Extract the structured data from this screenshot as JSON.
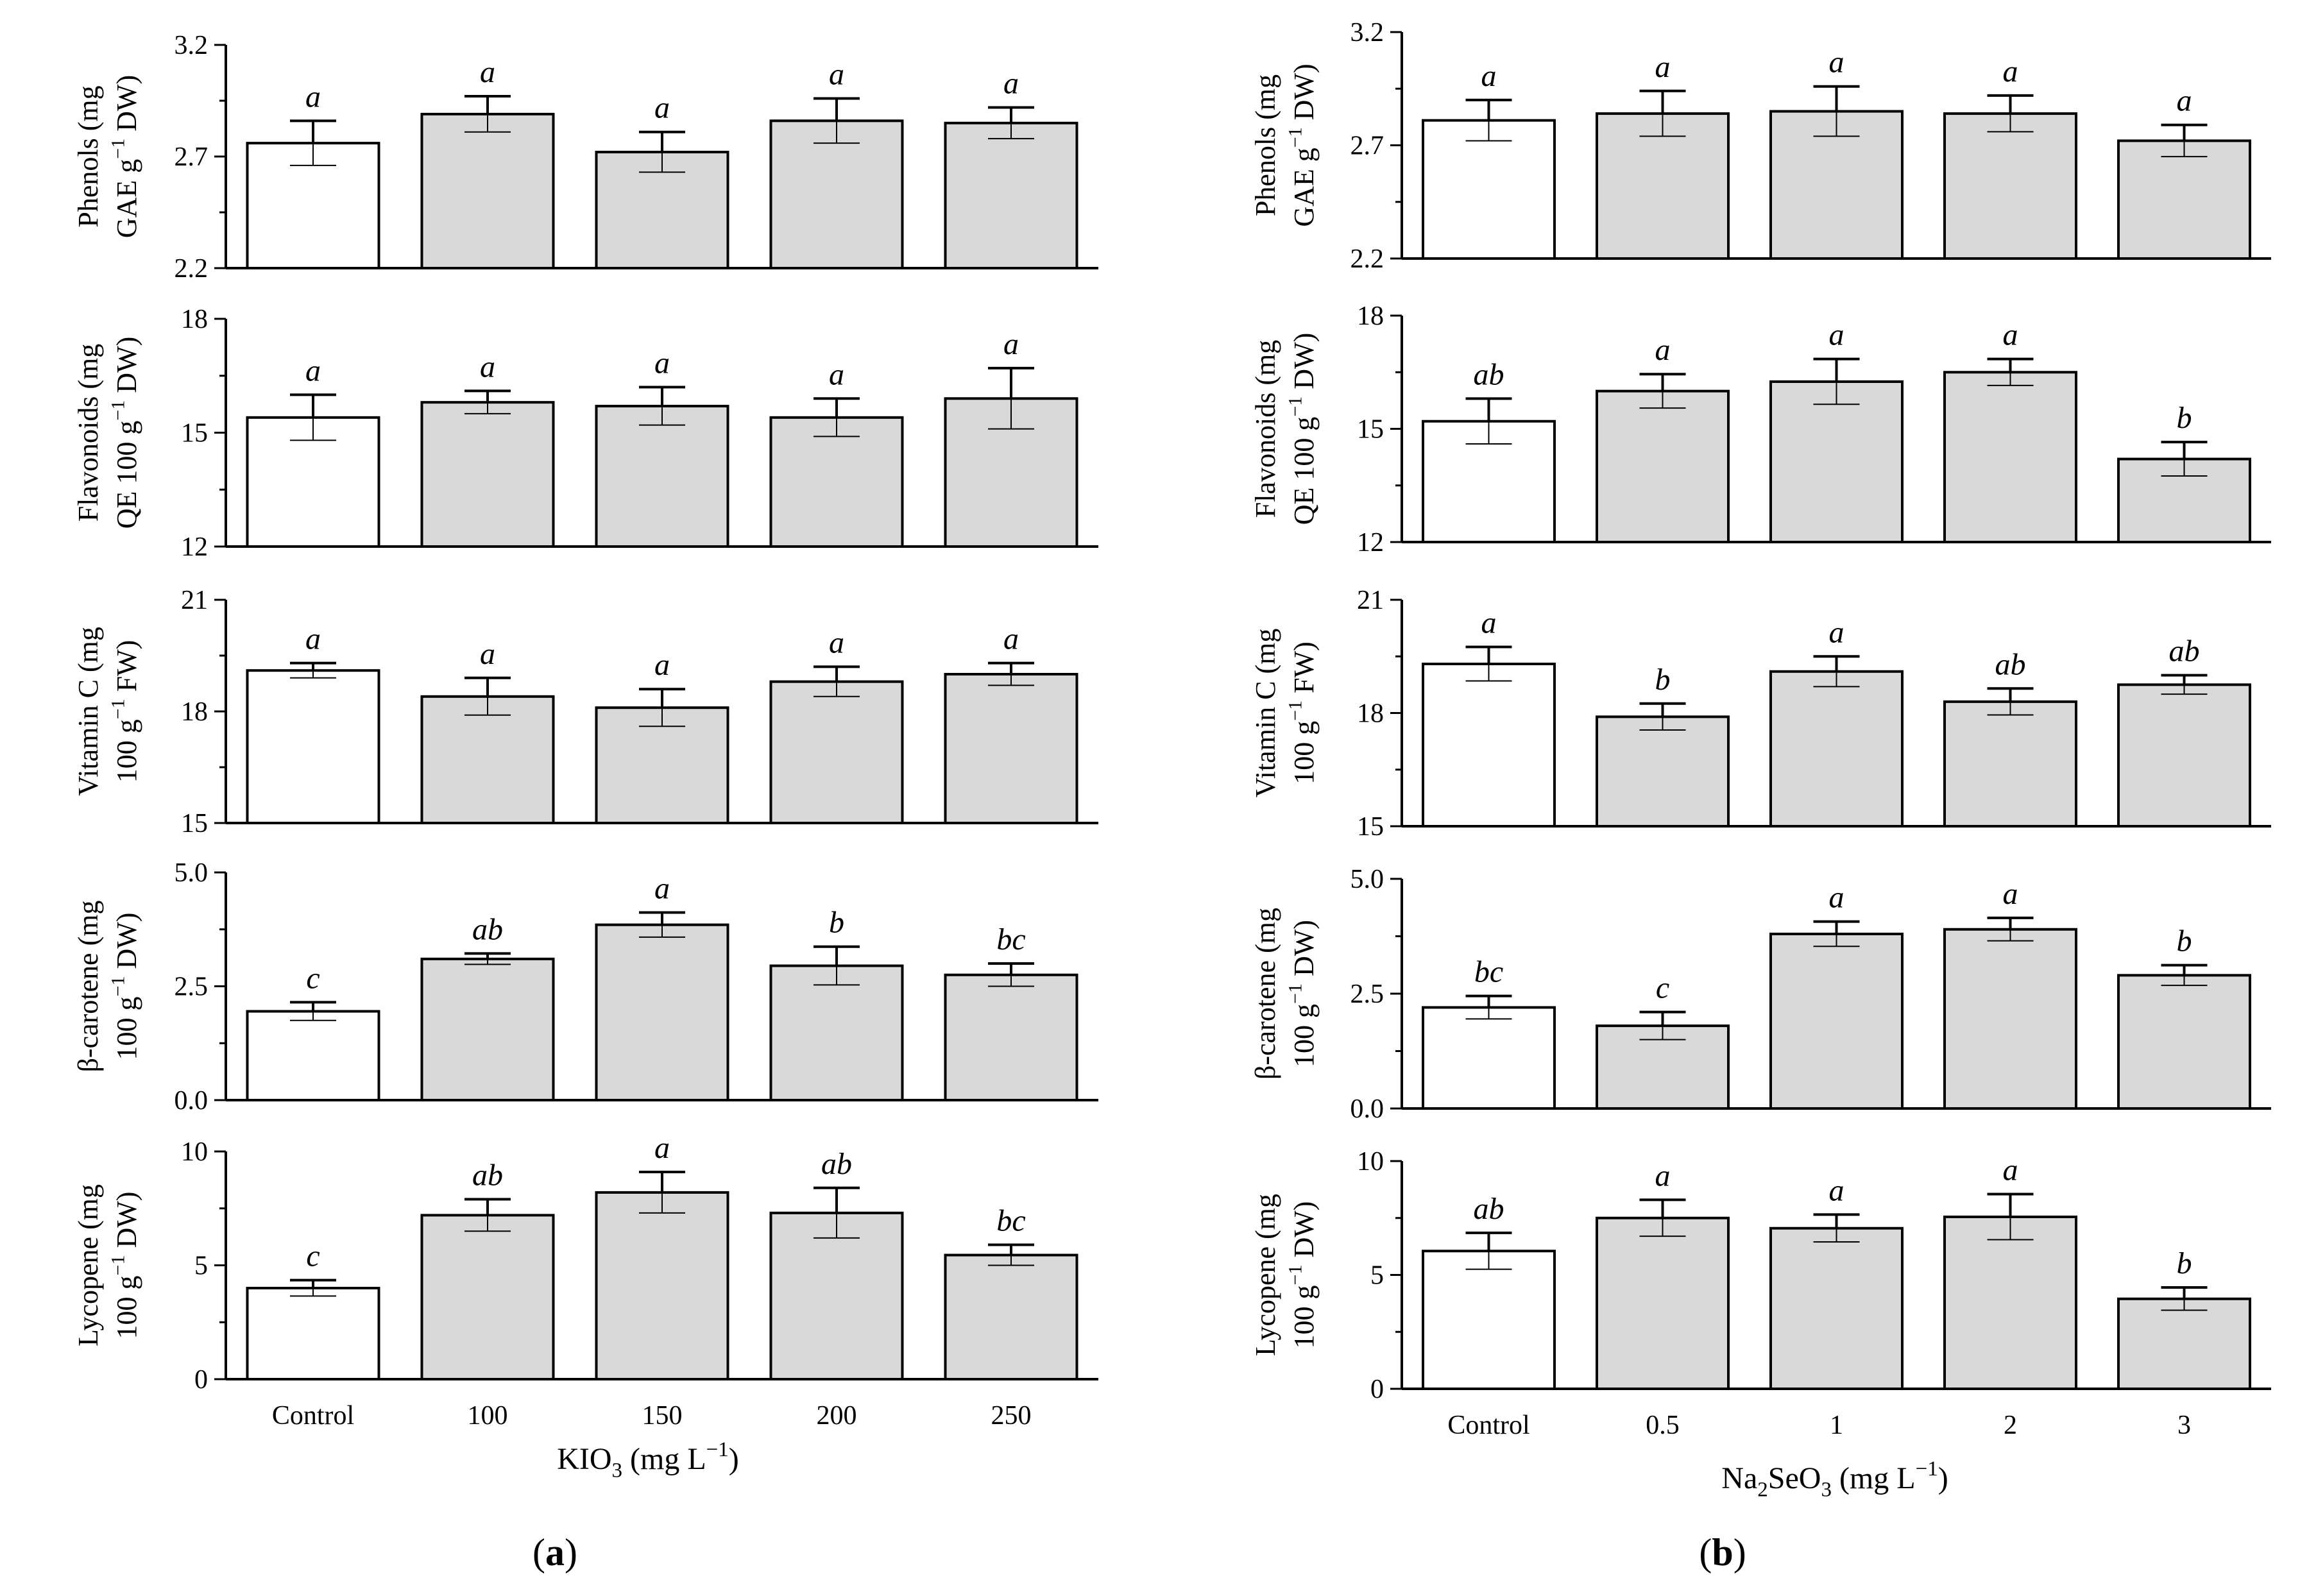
{
  "figure": {
    "panels": [
      {
        "label": "a",
        "xaxis_parts": [
          [
            "KIO",
            null
          ],
          [
            "3",
            "sub"
          ],
          [
            " (mg L",
            null
          ],
          [
            "−1",
            "sup"
          ],
          [
            ")",
            null
          ]
        ]
      },
      {
        "label": "b",
        "xaxis_parts": [
          [
            "Na",
            null
          ],
          [
            "2",
            "sub"
          ],
          [
            "SeO",
            null
          ],
          [
            "3",
            "sub"
          ],
          [
            " (mg L",
            null
          ],
          [
            "−1",
            "sup"
          ],
          [
            ")",
            null
          ]
        ]
      }
    ]
  },
  "chart_data": [
    {
      "type": "bar",
      "panel": "a",
      "row": 0,
      "categories": [
        "Control",
        "100",
        "150",
        "200",
        "250"
      ],
      "values": [
        2.76,
        2.89,
        2.72,
        2.86,
        2.85
      ],
      "errors": [
        0.1,
        0.08,
        0.09,
        0.1,
        0.07
      ],
      "letters": [
        "a",
        "a",
        "a",
        "a",
        "a"
      ],
      "ylim": [
        2.2,
        3.2
      ],
      "yticks": [
        "2.2",
        "2.7",
        "3.2"
      ],
      "ylabel_lines": [
        [
          [
            "Phenols (mg",
            null
          ]
        ],
        [
          [
            "GAE g",
            null
          ],
          [
            "−1",
            "sup"
          ],
          [
            " DW)",
            null
          ]
        ]
      ]
    },
    {
      "type": "bar",
      "panel": "a",
      "row": 1,
      "categories": [
        "Control",
        "100",
        "150",
        "200",
        "250"
      ],
      "values": [
        15.4,
        15.8,
        15.7,
        15.4,
        15.9
      ],
      "errors": [
        0.6,
        0.3,
        0.5,
        0.5,
        0.8
      ],
      "letters": [
        "a",
        "a",
        "a",
        "a",
        "a"
      ],
      "ylim": [
        12,
        18
      ],
      "yticks": [
        "12",
        "15",
        "18"
      ],
      "ylabel_lines": [
        [
          [
            "Flavonoids (mg",
            null
          ]
        ],
        [
          [
            "QE 100 g",
            null
          ],
          [
            "−1",
            "sup"
          ],
          [
            " DW)",
            null
          ]
        ]
      ]
    },
    {
      "type": "bar",
      "panel": "a",
      "row": 2,
      "categories": [
        "Control",
        "100",
        "150",
        "200",
        "250"
      ],
      "values": [
        19.1,
        18.4,
        18.1,
        18.8,
        19.0
      ],
      "errors": [
        0.2,
        0.5,
        0.5,
        0.4,
        0.3
      ],
      "letters": [
        "a",
        "a",
        "a",
        "a",
        "a"
      ],
      "ylim": [
        15,
        21
      ],
      "yticks": [
        "15",
        "18",
        "21"
      ],
      "ylabel_lines": [
        [
          [
            "Vitamin C (mg",
            null
          ]
        ],
        [
          [
            "100 g",
            null
          ],
          [
            "−1",
            "sup"
          ],
          [
            " FW)",
            null
          ]
        ]
      ]
    },
    {
      "type": "bar",
      "panel": "a",
      "row": 3,
      "categories": [
        "Control",
        "100",
        "150",
        "200",
        "250"
      ],
      "values": [
        1.95,
        3.1,
        3.85,
        2.95,
        2.75
      ],
      "errors": [
        0.2,
        0.12,
        0.27,
        0.42,
        0.25
      ],
      "letters": [
        "c",
        "ab",
        "a",
        "b",
        "bc"
      ],
      "ylim": [
        0,
        5
      ],
      "yticks": [
        "0.0",
        "2.5",
        "5.0"
      ],
      "ylabel_lines": [
        [
          [
            "β-carotene (mg",
            null
          ]
        ],
        [
          [
            "100 g",
            null
          ],
          [
            "−1",
            "sup"
          ],
          [
            " DW)",
            null
          ]
        ]
      ]
    },
    {
      "type": "bar",
      "panel": "a",
      "row": 4,
      "categories": [
        "Control",
        "100",
        "150",
        "200",
        "250"
      ],
      "values": [
        4.0,
        7.2,
        8.2,
        7.3,
        5.45
      ],
      "errors": [
        0.35,
        0.7,
        0.9,
        1.1,
        0.45
      ],
      "letters": [
        "c",
        "ab",
        "a",
        "ab",
        "bc"
      ],
      "ylim": [
        0,
        10
      ],
      "yticks": [
        "0",
        "5",
        "10"
      ],
      "ylabel_lines": [
        [
          [
            "Lycopene (mg",
            null
          ]
        ],
        [
          [
            "100 g",
            null
          ],
          [
            "−1",
            "sup"
          ],
          [
            " DW)",
            null
          ]
        ]
      ]
    },
    {
      "type": "bar",
      "panel": "b",
      "row": 0,
      "categories": [
        "Control",
        "0.5",
        "1",
        "2",
        "3"
      ],
      "values": [
        2.81,
        2.84,
        2.85,
        2.84,
        2.72
      ],
      "errors": [
        0.09,
        0.1,
        0.11,
        0.08,
        0.07
      ],
      "letters": [
        "a",
        "a",
        "a",
        "a",
        "a"
      ],
      "ylim": [
        2.2,
        3.2
      ],
      "yticks": [
        "2.2",
        "2.7",
        "3.2"
      ],
      "ylabel_lines": [
        [
          [
            "Phenols (mg",
            null
          ]
        ],
        [
          [
            "GAE g",
            null
          ],
          [
            "−1",
            "sup"
          ],
          [
            " DW)",
            null
          ]
        ]
      ]
    },
    {
      "type": "bar",
      "panel": "b",
      "row": 1,
      "categories": [
        "Control",
        "0.5",
        "1",
        "2",
        "3"
      ],
      "values": [
        15.2,
        16.0,
        16.25,
        16.5,
        14.2
      ],
      "errors": [
        0.6,
        0.45,
        0.6,
        0.35,
        0.45
      ],
      "letters": [
        "ab",
        "a",
        "a",
        "a",
        "b"
      ],
      "ylim": [
        12,
        18
      ],
      "yticks": [
        "12",
        "15",
        "18"
      ],
      "ylabel_lines": [
        [
          [
            "Flavonoids (mg",
            null
          ]
        ],
        [
          [
            "QE 100 g",
            null
          ],
          [
            "−1",
            "sup"
          ],
          [
            " DW)",
            null
          ]
        ]
      ]
    },
    {
      "type": "bar",
      "panel": "b",
      "row": 2,
      "categories": [
        "Control",
        "0.5",
        "1",
        "2",
        "3"
      ],
      "values": [
        19.3,
        17.9,
        19.1,
        18.3,
        18.75
      ],
      "errors": [
        0.45,
        0.35,
        0.4,
        0.35,
        0.25
      ],
      "letters": [
        "a",
        "b",
        "a",
        "ab",
        "ab"
      ],
      "ylim": [
        15,
        21
      ],
      "yticks": [
        "15",
        "18",
        "21"
      ],
      "ylabel_lines": [
        [
          [
            "Vitamin C (mg",
            null
          ]
        ],
        [
          [
            "100 g",
            null
          ],
          [
            "−1",
            "sup"
          ],
          [
            " FW)",
            null
          ]
        ]
      ]
    },
    {
      "type": "bar",
      "panel": "b",
      "row": 3,
      "categories": [
        "Control",
        "0.5",
        "1",
        "2",
        "3"
      ],
      "values": [
        2.2,
        1.8,
        3.8,
        3.9,
        2.9
      ],
      "errors": [
        0.25,
        0.3,
        0.27,
        0.25,
        0.22
      ],
      "letters": [
        "bc",
        "c",
        "a",
        "a",
        "b"
      ],
      "ylim": [
        0,
        5
      ],
      "yticks": [
        "0.0",
        "2.5",
        "5.0"
      ],
      "ylabel_lines": [
        [
          [
            "β-carotene (mg",
            null
          ]
        ],
        [
          [
            "100 g",
            null
          ],
          [
            "−1",
            "sup"
          ],
          [
            " DW)",
            null
          ]
        ]
      ]
    },
    {
      "type": "bar",
      "panel": "b",
      "row": 4,
      "categories": [
        "Control",
        "0.5",
        "1",
        "2",
        "3"
      ],
      "values": [
        6.05,
        7.5,
        7.05,
        7.55,
        3.95
      ],
      "errors": [
        0.8,
        0.8,
        0.6,
        1.0,
        0.5
      ],
      "letters": [
        "ab",
        "a",
        "a",
        "a",
        "b"
      ],
      "ylim": [
        0,
        10
      ],
      "yticks": [
        "0",
        "5",
        "10"
      ],
      "ylabel_lines": [
        [
          [
            "Lycopene (mg",
            null
          ]
        ],
        [
          [
            "100 g",
            null
          ],
          [
            "−1",
            "sup"
          ],
          [
            " DW)",
            null
          ]
        ]
      ]
    }
  ]
}
